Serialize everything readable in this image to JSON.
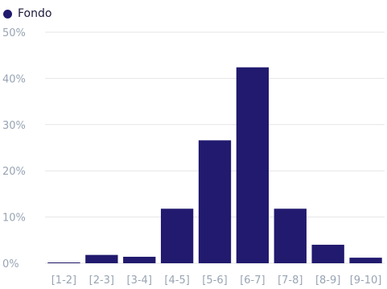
{
  "colors": {
    "bar": "#211a6e",
    "grid": "#e6e6e6",
    "tick_text": "#98a4b3",
    "legend_text": "#1c1c3a",
    "background": "#ffffff"
  },
  "legend": {
    "items": [
      {
        "label": "Fondo",
        "color": "#211a6e"
      }
    ]
  },
  "chart_data": {
    "type": "bar",
    "title": "",
    "xlabel": "",
    "ylabel": "",
    "categories": [
      "[1-2]",
      "[2-3]",
      "[3-4]",
      "[4-5]",
      "[5-6]",
      "[6-7]",
      "[7-8]",
      "[8-9]",
      "[9-10]"
    ],
    "series": [
      {
        "name": "Fondo",
        "values": [
          0,
          1.8,
          1.4,
          11.8,
          26.6,
          42.4,
          11.8,
          4.0,
          1.2
        ]
      }
    ],
    "ylim": [
      0,
      50
    ],
    "yticks": [
      0,
      10,
      20,
      30,
      40,
      50
    ],
    "ytick_format": "{v}%",
    "grid": true,
    "legend_position": "top-left"
  }
}
